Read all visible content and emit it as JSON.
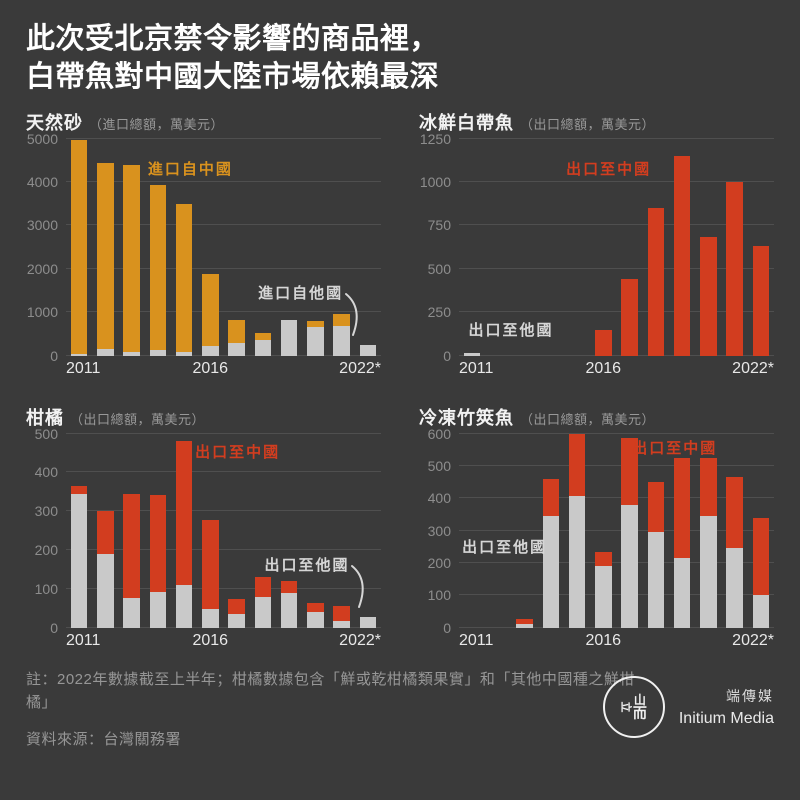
{
  "header": {
    "title_line1": "此次受北京禁令影響的商品裡，",
    "title_line2": "白帶魚對中國大陸市場依賴最深"
  },
  "colors": {
    "background": "#3a3a3a",
    "bar_others": "#c9c9c9",
    "bar_import_china": "#d9921e",
    "bar_export_china": "#d23d1f",
    "label_gray": "#d6d6d6",
    "grid": "#4f4f4f",
    "y_tick": "#8d8d8d",
    "x_tick": "#e8e8e8",
    "title": "#ffffff",
    "note": "#969696"
  },
  "chart_data": [
    {
      "id": "natural-sand",
      "type": "bar",
      "stacked": true,
      "title": "天然砂",
      "unit_note": "（進口總額，萬美元）",
      "categories": [
        "2011",
        "2012",
        "2013",
        "2014",
        "2015",
        "2016",
        "2017",
        "2018",
        "2019",
        "2020",
        "2021",
        "2022"
      ],
      "series": [
        {
          "name": "進口自他國",
          "color_key": "bar_others",
          "values": [
            30,
            150,
            90,
            130,
            80,
            210,
            290,
            360,
            820,
            650,
            680,
            240
          ]
        },
        {
          "name": "進口自中國",
          "color_key": "bar_import_china",
          "values": [
            4920,
            4280,
            4310,
            3810,
            3420,
            1660,
            520,
            160,
            0,
            140,
            270,
            0
          ]
        }
      ],
      "ylim": [
        0,
        5000
      ],
      "ytick_step": 1000,
      "xticks": [
        "2011",
        "2016",
        "2022*"
      ],
      "grid": true,
      "annotations": [
        {
          "name": "china-series-label",
          "text": "進口自中國",
          "color_key": "bar_import_china",
          "x": 26,
          "y": 11,
          "arrow": false
        },
        {
          "name": "others-series-label",
          "text": "進口自他國",
          "color_key": "label_gray",
          "x": 61,
          "y": 68,
          "arrow": true
        }
      ]
    },
    {
      "id": "fresh-hairtail",
      "type": "bar",
      "stacked": true,
      "title": "冰鮮白帶魚",
      "unit_note": "（出口總額，萬美元）",
      "categories": [
        "2011",
        "2012",
        "2013",
        "2014",
        "2015",
        "2016",
        "2017",
        "2018",
        "2019",
        "2020",
        "2021",
        "2022"
      ],
      "series": [
        {
          "name": "出口至他國",
          "color_key": "bar_others",
          "values": [
            12,
            0,
            0,
            0,
            0,
            0,
            0,
            0,
            0,
            0,
            0,
            0
          ]
        },
        {
          "name": "出口至中國",
          "color_key": "bar_export_china",
          "values": [
            0,
            0,
            0,
            0,
            0,
            150,
            440,
            850,
            1150,
            680,
            1000,
            630
          ]
        }
      ],
      "ylim": [
        0,
        1250
      ],
      "ytick_step": 250,
      "xticks": [
        "2011",
        "2016",
        "2022*"
      ],
      "grid": true,
      "annotations": [
        {
          "name": "china-series-label",
          "text": "出口至中國",
          "color_key": "bar_export_china",
          "x": 34,
          "y": 11,
          "arrow": false
        },
        {
          "name": "others-series-label",
          "text": "出口至他國",
          "color_key": "label_gray",
          "x": 3,
          "y": 85,
          "arrow": false
        }
      ]
    },
    {
      "id": "citrus",
      "type": "bar",
      "stacked": true,
      "title": "柑橘",
      "unit_note": "（出口總額，萬美元）",
      "categories": [
        "2011",
        "2012",
        "2013",
        "2014",
        "2015",
        "2016",
        "2017",
        "2018",
        "2019",
        "2020",
        "2021",
        "2022"
      ],
      "series": [
        {
          "name": "出口至他國",
          "color_key": "bar_others",
          "values": [
            345,
            190,
            75,
            92,
            110,
            47,
            35,
            78,
            90,
            40,
            18,
            28
          ]
        },
        {
          "name": "出口至中國",
          "color_key": "bar_export_china",
          "values": [
            20,
            110,
            270,
            250,
            370,
            231,
            38,
            52,
            30,
            22,
            37,
            0
          ]
        }
      ],
      "ylim": [
        0,
        500
      ],
      "ytick_step": 100,
      "xticks": [
        "2011",
        "2016",
        "2022*"
      ],
      "grid": true,
      "annotations": [
        {
          "name": "china-series-label",
          "text": "出口至中國",
          "color_key": "bar_export_china",
          "x": 41,
          "y": 6,
          "arrow": false
        },
        {
          "name": "others-series-label",
          "text": "出口至他國",
          "color_key": "label_gray",
          "x": 63,
          "y": 64,
          "arrow": true
        }
      ]
    },
    {
      "id": "frozen-jack-mackerel",
      "type": "bar",
      "stacked": true,
      "title": "冷凍竹筴魚",
      "unit_note": "（出口總額，萬美元）",
      "categories": [
        "2011",
        "2012",
        "2013",
        "2014",
        "2015",
        "2016",
        "2017",
        "2018",
        "2019",
        "2020",
        "2021",
        "2022"
      ],
      "series": [
        {
          "name": "出口至他國",
          "color_key": "bar_others",
          "values": [
            0,
            0,
            10,
            345,
            420,
            190,
            380,
            295,
            215,
            345,
            245,
            100
          ]
        },
        {
          "name": "出口至中國",
          "color_key": "bar_export_china",
          "values": [
            0,
            0,
            15,
            115,
            200,
            45,
            205,
            155,
            310,
            180,
            220,
            240
          ]
        }
      ],
      "ylim": [
        0,
        600
      ],
      "ytick_step": 100,
      "xticks": [
        "2011",
        "2016",
        "2022*"
      ],
      "grid": true,
      "annotations": [
        {
          "name": "others-series-label",
          "text": "出口至他國",
          "color_key": "label_gray",
          "x": 1,
          "y": 55,
          "arrow": false
        },
        {
          "name": "china-series-label",
          "text": "出口至中國",
          "color_key": "bar_export_china",
          "x": 55,
          "y": 4,
          "arrow": false
        }
      ]
    }
  ],
  "footer": {
    "note": "註：2022年數據截至上半年；柑橘數據包含「鮮或乾柑橘類果實」和「其他中國種之鮮柑橘」",
    "source": "資料來源：台灣關務署"
  },
  "logo": {
    "glyph_li": "立",
    "glyph_shan": "山",
    "glyph_er": "而",
    "name_zh": "端傳媒",
    "name_en": "Initium Media"
  }
}
